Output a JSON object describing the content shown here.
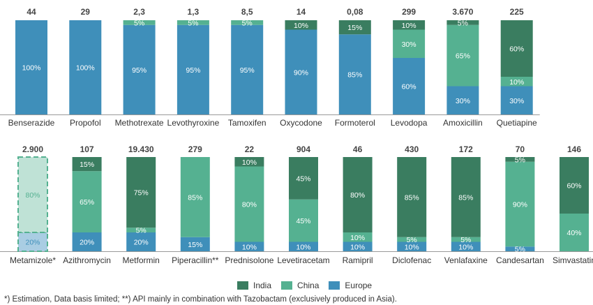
{
  "colors": {
    "india": "#3a7d60",
    "china": "#55b191",
    "europe": "#3f8fba",
    "estimate_fill": "#bfe2d6",
    "estimate_border": "#55b191",
    "estimate_europe": "#a9cde3",
    "baseline": "#999999"
  },
  "legend": [
    {
      "key": "india",
      "label": "India"
    },
    {
      "key": "china",
      "label": "China"
    },
    {
      "key": "europe",
      "label": "Europe"
    }
  ],
  "footnote": "*) Estimation, Data basis limited; **) API mainly in combination with Tazobactam (exclusively produced in Asia).",
  "chart_data": [
    {
      "type": "bar",
      "stacked": true,
      "normalized": true,
      "ylim": [
        0,
        100
      ],
      "series_order_bottom_to_top": [
        "Europe",
        "China",
        "India"
      ],
      "categories": [
        "Benserazide",
        "Propofol",
        "Methotrexate",
        "Levothyroxine",
        "Tamoxifen",
        "Oxycodone",
        "Formoterol",
        "Levodopa",
        "Amoxicillin",
        "Quetiapine"
      ],
      "totals": [
        "44",
        "29",
        "2,3",
        "1,3",
        "8,5",
        "14",
        "0,08",
        "299",
        "3.670",
        "225"
      ],
      "series": [
        {
          "name": "Europe",
          "values": [
            100,
            100,
            95,
            95,
            95,
            90,
            85,
            60,
            30,
            30
          ]
        },
        {
          "name": "China",
          "values": [
            0,
            0,
            5,
            5,
            5,
            0,
            0,
            30,
            65,
            10
          ]
        },
        {
          "name": "India",
          "values": [
            0,
            0,
            0,
            0,
            0,
            10,
            15,
            10,
            5,
            60
          ]
        }
      ]
    },
    {
      "type": "bar",
      "stacked": true,
      "normalized": true,
      "ylim": [
        0,
        100
      ],
      "series_order_bottom_to_top": [
        "Europe",
        "China",
        "India"
      ],
      "categories": [
        "Metamizole*",
        "Azithromycin",
        "Metformin",
        "Piperacillin**",
        "Prednisolone",
        "Levetiracetam",
        "Ramipril",
        "Diclofenac",
        "Venlafaxine",
        "Candesartan",
        "Simvastatin"
      ],
      "totals": [
        "2.900",
        "107",
        "19.430",
        "279",
        "22",
        "904",
        "46",
        "430",
        "172",
        "70",
        "146"
      ],
      "estimated": [
        true,
        false,
        false,
        false,
        false,
        false,
        false,
        false,
        false,
        false,
        false
      ],
      "series": [
        {
          "name": "Europe",
          "values": [
            20,
            20,
            20,
            15,
            10,
            10,
            10,
            10,
            10,
            5,
            0
          ]
        },
        {
          "name": "China",
          "values": [
            80,
            65,
            5,
            85,
            80,
            45,
            10,
            5,
            5,
            90,
            40
          ]
        },
        {
          "name": "India",
          "values": [
            0,
            15,
            75,
            0,
            10,
            45,
            80,
            85,
            85,
            5,
            60
          ]
        }
      ]
    }
  ]
}
